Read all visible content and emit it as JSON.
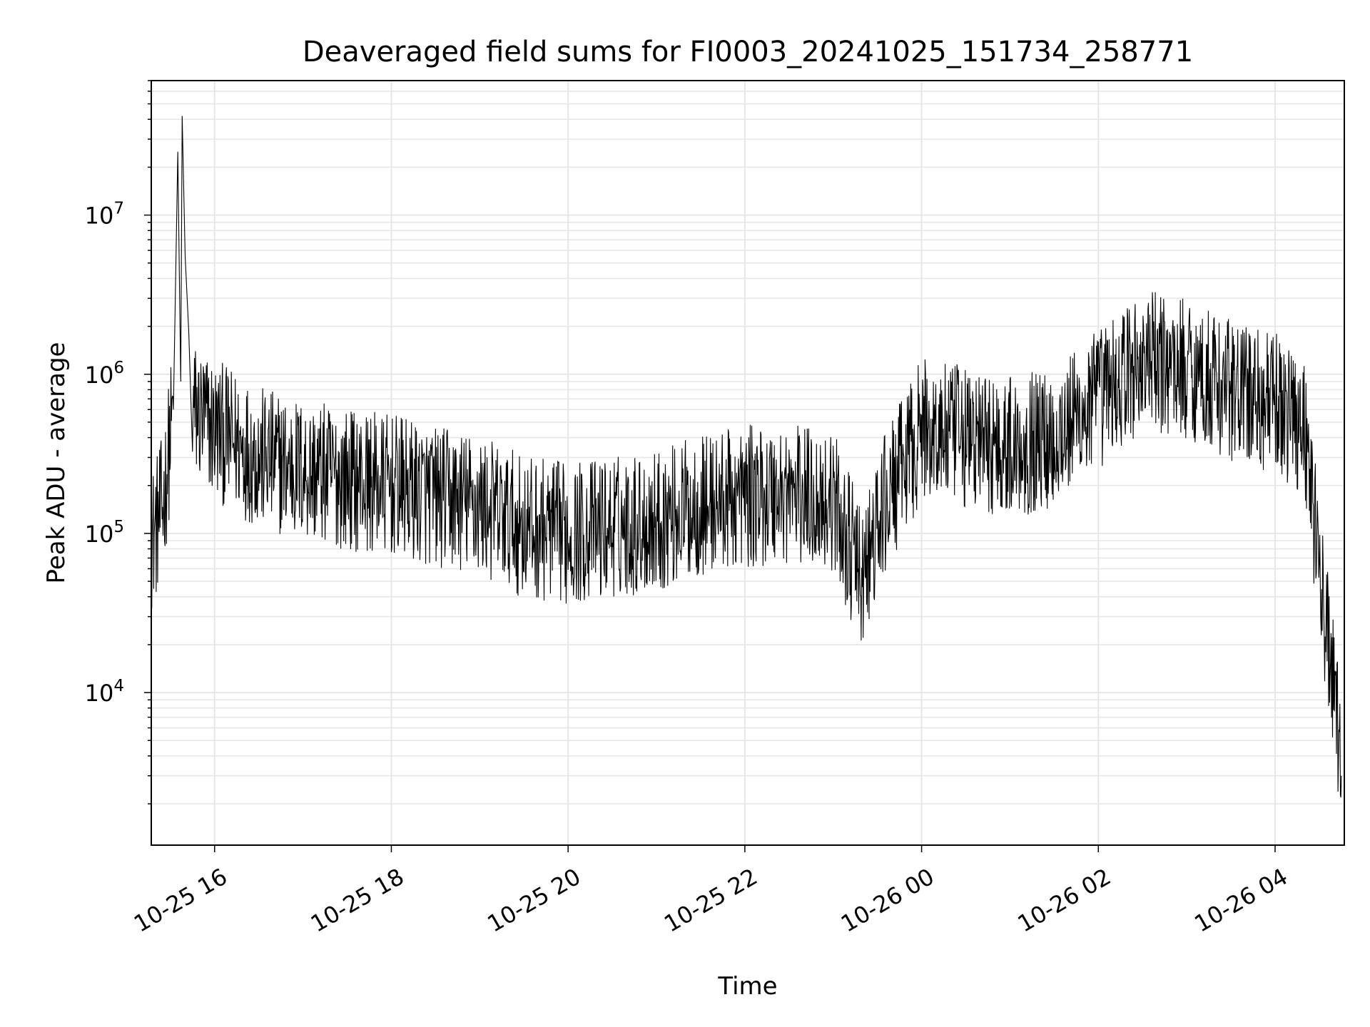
{
  "chart_data": {
    "type": "line",
    "title": "Deaveraged field sums for FI0003_20241025_151734_258771",
    "xlabel": "Time",
    "ylabel": "Peak ADU - average",
    "y_scale": "log",
    "ylim": [
      1100,
      70000000
    ],
    "xlim": [
      "2024-10-25 15:17",
      "2024-10-26 04:47"
    ],
    "x_ticks": [
      {
        "time": "2024-10-25 16:00",
        "label": "10-25 16"
      },
      {
        "time": "2024-10-25 18:00",
        "label": "10-25 18"
      },
      {
        "time": "2024-10-25 20:00",
        "label": "10-25 20"
      },
      {
        "time": "2024-10-25 22:00",
        "label": "10-25 22"
      },
      {
        "time": "2024-10-26 00:00",
        "label": "10-26 00"
      },
      {
        "time": "2024-10-26 02:00",
        "label": "10-26 02"
      },
      {
        "time": "2024-10-26 04:00",
        "label": "10-26 04"
      }
    ],
    "y_ticks": [
      {
        "value": 10000,
        "base": "10",
        "exp": "4"
      },
      {
        "value": 100000,
        "base": "10",
        "exp": "5"
      },
      {
        "value": 1000000,
        "base": "10",
        "exp": "6"
      },
      {
        "value": 10000000,
        "base": "10",
        "exp": "7"
      }
    ],
    "grid": true,
    "line_color": "#000000",
    "series": [
      {
        "points": [
          [
            "2024-10-25 15:17",
            90000
          ],
          [
            "2024-10-25 15:25",
            150000
          ],
          [
            "2024-10-25 15:32",
            600000
          ],
          [
            "2024-10-25 15:35",
            25000000
          ],
          [
            "2024-10-25 15:37",
            900000
          ],
          [
            "2024-10-25 15:38",
            42000000
          ],
          [
            "2024-10-25 15:40",
            5500000
          ],
          [
            "2024-10-25 15:45",
            600000
          ],
          [
            "2024-10-25 16:00",
            450000
          ],
          [
            "2024-10-25 16:30",
            300000
          ],
          [
            "2024-10-25 17:00",
            250000
          ],
          [
            "2024-10-25 17:30",
            220000
          ],
          [
            "2024-10-25 18:00",
            200000
          ],
          [
            "2024-10-25 18:30",
            170000
          ],
          [
            "2024-10-25 19:00",
            150000
          ],
          [
            "2024-10-25 19:30",
            110000
          ],
          [
            "2024-10-25 20:00",
            100000
          ],
          [
            "2024-10-25 20:30",
            110000
          ],
          [
            "2024-10-25 21:00",
            120000
          ],
          [
            "2024-10-25 21:30",
            150000
          ],
          [
            "2024-10-25 22:00",
            170000
          ],
          [
            "2024-10-25 22:30",
            180000
          ],
          [
            "2024-10-25 23:00",
            160000
          ],
          [
            "2024-10-25 23:20",
            50000
          ],
          [
            "2024-10-25 23:35",
            150000
          ],
          [
            "2024-10-26 00:00",
            450000
          ],
          [
            "2024-10-26 00:30",
            400000
          ],
          [
            "2024-10-26 01:00",
            350000
          ],
          [
            "2024-10-26 01:30",
            400000
          ],
          [
            "2024-10-26 02:00",
            700000
          ],
          [
            "2024-10-26 02:30",
            1200000
          ],
          [
            "2024-10-26 03:00",
            1100000
          ],
          [
            "2024-10-26 03:30",
            800000
          ],
          [
            "2024-10-26 04:00",
            650000
          ],
          [
            "2024-10-26 04:20",
            500000
          ],
          [
            "2024-10-26 04:30",
            60000
          ],
          [
            "2024-10-26 04:40",
            10000
          ],
          [
            "2024-10-26 04:45",
            3000
          ]
        ]
      }
    ]
  }
}
